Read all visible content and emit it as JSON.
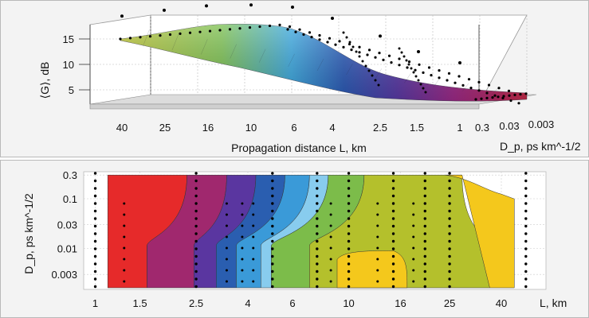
{
  "chart_data": [
    {
      "type": "surface",
      "zlabel": "⟨G⟩, dB",
      "xlabel": "Propagation distance L, km",
      "ylabel": "D_p, ps km^-1/2",
      "zticks": [
        "15",
        "10",
        "5"
      ],
      "x_ticks": [
        "40",
        "25",
        "16",
        "10",
        "6",
        "4",
        "2.5",
        "1.5",
        "1"
      ],
      "y_ticks": [
        "0.3",
        "0.03",
        "0.003"
      ],
      "colormap": [
        "#e0202a",
        "#a02a8a",
        "#5a3aa8",
        "#2a5ab8",
        "#3aa8e0",
        "#7ac050",
        "#b8c030",
        "#e8c020"
      ],
      "surface_profile_far_edge": [
        {
          "L": 40,
          "G": 15.5
        },
        {
          "L": 25,
          "G": 16.8
        },
        {
          "L": 16,
          "G": 17.8
        },
        {
          "L": 10,
          "G": 18
        },
        {
          "L": 6,
          "G": 17.5
        },
        {
          "L": 4,
          "G": 15
        },
        {
          "L": 2.5,
          "G": 11
        },
        {
          "L": 1.5,
          "G": 7.5
        },
        {
          "L": 1,
          "G": 5
        }
      ],
      "grid": true
    },
    {
      "type": "contour",
      "xlabel": "L, km",
      "ylabel": "D_p, ps km^-1/2",
      "x_ticks": [
        "1",
        "1.5",
        "2.5",
        "4",
        "6",
        "10",
        "16",
        "25",
        "40"
      ],
      "y_ticks": [
        "0.3",
        "0.1",
        "0.03",
        "0.01",
        "0.003"
      ],
      "x_scale": "log",
      "y_scale": "log",
      "xlim": [
        0.9,
        60
      ],
      "ylim": [
        0.0015,
        0.35
      ],
      "levels_colors": [
        "#e62a2a",
        "#a0286e",
        "#5a36a0",
        "#2a5eb0",
        "#3a9ad8",
        "#88ccee",
        "#7cbc4a",
        "#b4c02c",
        "#f4c81c"
      ],
      "sample_columns_L": [
        1,
        2.5,
        5,
        7.5,
        10,
        15,
        20,
        25,
        50
      ]
    }
  ]
}
